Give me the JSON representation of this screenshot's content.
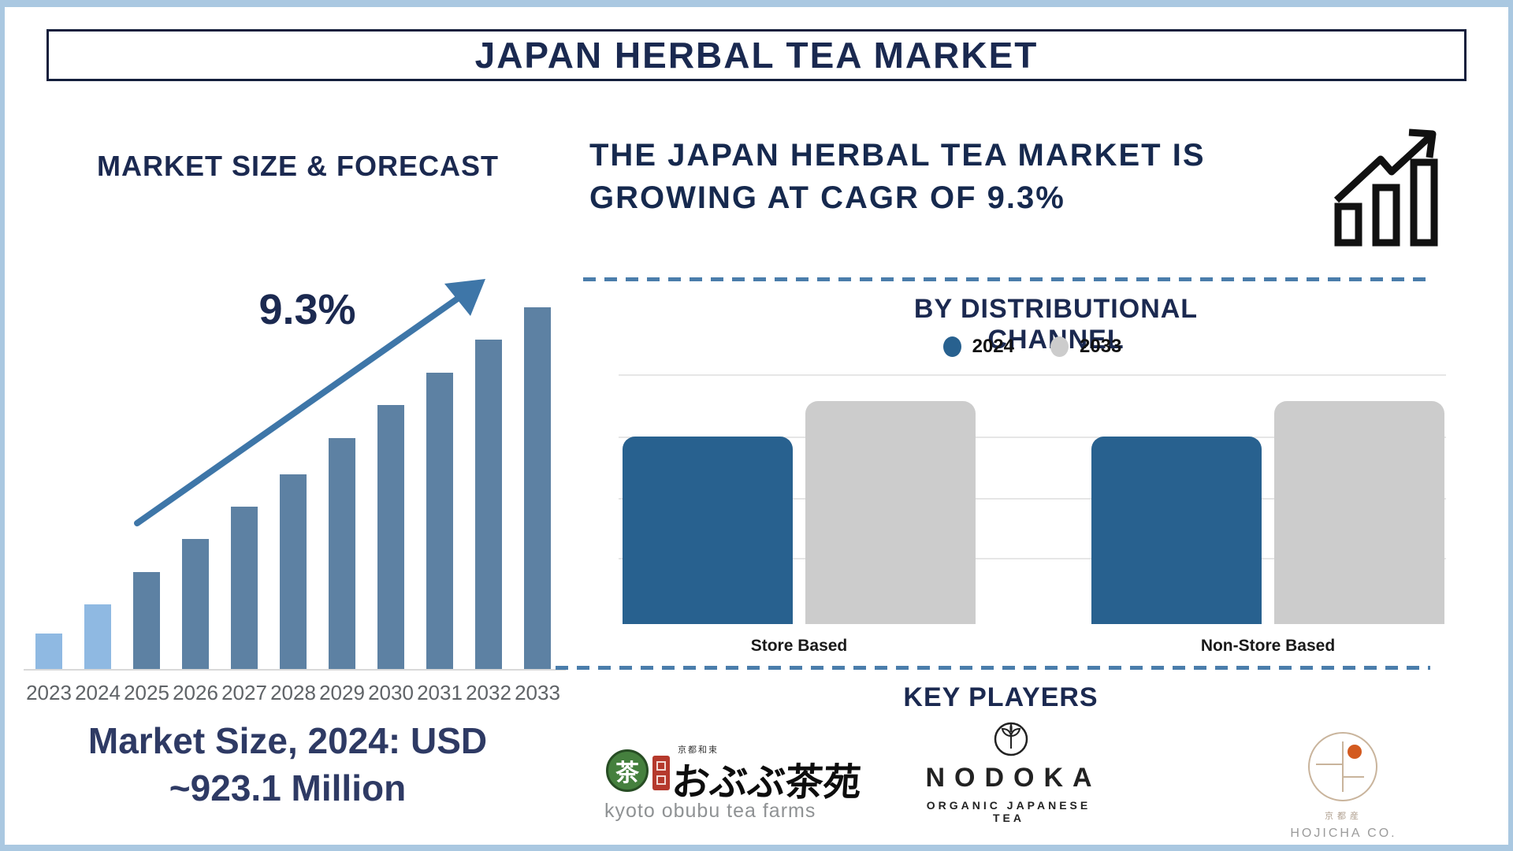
{
  "page": {
    "title": "JAPAN HERBAL TEA MARKET",
    "accent_navy": "#1b2950",
    "frame_color": "#aac8e1",
    "dashed_line_color": "#4a7dab"
  },
  "left_chart": {
    "heading": "MARKET SIZE & FORECAST",
    "cagr_label": "9.3%",
    "years": [
      "2023",
      "2024",
      "2025",
      "2026",
      "2027",
      "2028",
      "2029",
      "2030",
      "2031",
      "2032",
      "2033"
    ],
    "relative_height_pct": [
      10,
      18,
      27,
      36,
      45,
      54,
      64,
      73,
      82,
      91,
      100
    ],
    "light_years_count": 2,
    "bar_color_historical": "#8fb9e2",
    "bar_color_forecast": "#5d81a3",
    "arrow_color": "#3e76a8",
    "caption_line1": "Market Size, 2024: USD",
    "caption_line2": "~923.1 Million"
  },
  "right_top": {
    "heading_line1": "THE JAPAN HERBAL TEA MARKET IS",
    "heading_line2": "GROWING AT CAGR OF 9.3%",
    "icon": "growth-chart-icon"
  },
  "channel_chart": {
    "title": "BY DISTRIBUTIONAL CHANNEL",
    "legend": [
      {
        "label": "2024",
        "color": "#28618f"
      },
      {
        "label": "2033",
        "color": "#cccccc"
      }
    ],
    "categories": [
      "Store Based",
      "Non-Store Based"
    ],
    "series": [
      {
        "name": "2024",
        "color": "#28618f",
        "relative_height_pct": [
          84,
          84
        ]
      },
      {
        "name": "2033",
        "color": "#cccccc",
        "relative_height_pct": [
          100,
          100
        ]
      }
    ]
  },
  "key_players": {
    "heading": "KEY PLAYERS",
    "players": [
      {
        "name": "kyoto obubu tea farms",
        "tea_kanji": "茶",
        "jp_small": "京都和束",
        "jp_calligraphy": "おぶぶ茶苑"
      },
      {
        "name": "NODOKA",
        "tagline": "ORGANIC JAPANESE TEA"
      },
      {
        "name": "HOJICHA CO.",
        "jp_small": "京都産"
      }
    ]
  },
  "chart_data": [
    {
      "type": "bar",
      "title": "MARKET SIZE & FORECAST",
      "categories": [
        "2023",
        "2024",
        "2025",
        "2026",
        "2027",
        "2028",
        "2029",
        "2030",
        "2031",
        "2032",
        "2033"
      ],
      "values": [
        10,
        18,
        27,
        36,
        45,
        54,
        64,
        73,
        82,
        91,
        100
      ],
      "value_units": "relative bar height, % of tallest bar (no numeric axis shown)",
      "known_point": "2024 = USD ~923.1 Million (from caption)",
      "annotation": "9.3% CAGR arrow over bars",
      "xlabel": "",
      "ylabel": "",
      "grid": false,
      "series_colors": {
        "2023-2024": "#8fb9e2",
        "2025-2033": "#5d81a3"
      }
    },
    {
      "type": "bar",
      "title": "BY DISTRIBUTIONAL CHANNEL",
      "categories": [
        "Store Based",
        "Non-Store Based"
      ],
      "series": [
        {
          "name": "2024",
          "values": [
            84,
            84
          ]
        },
        {
          "name": "2033",
          "values": [
            100,
            100
          ]
        }
      ],
      "value_units": "relative bar height, % of tallest bar (no numeric axis shown)",
      "grid": true,
      "legend_position": "top-center"
    }
  ]
}
